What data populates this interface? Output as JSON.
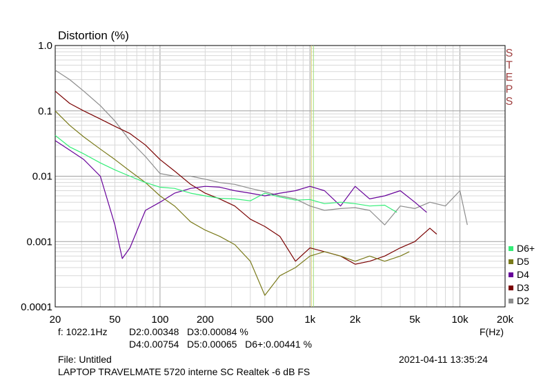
{
  "chart_data": {
    "type": "line",
    "title": "Distortion (%)",
    "xlabel": "F(Hz)",
    "x_scale": "log",
    "y_scale": "log",
    "xlim": [
      20,
      20000
    ],
    "ylim": [
      0.0001,
      1.0
    ],
    "grid": true,
    "legend_position": "right-bottom",
    "watermark": "STEPS",
    "cursor_freq": 1022.1,
    "x_ticks": [
      {
        "value": 20,
        "label": "20"
      },
      {
        "value": 50,
        "label": "50"
      },
      {
        "value": 100,
        "label": "100"
      },
      {
        "value": 200,
        "label": "200"
      },
      {
        "value": 500,
        "label": "500"
      },
      {
        "value": 1000,
        "label": "1k"
      },
      {
        "value": 2000,
        "label": "2k"
      },
      {
        "value": 5000,
        "label": "5k"
      },
      {
        "value": 10000,
        "label": "10k"
      },
      {
        "value": 20000,
        "label": "20k"
      }
    ],
    "y_ticks": [
      {
        "value": 1.0,
        "label": "1.0"
      },
      {
        "value": 0.1,
        "label": "0.1"
      },
      {
        "value": 0.01,
        "label": "0.01"
      },
      {
        "value": 0.001,
        "label": "0.001"
      },
      {
        "value": 0.0001,
        "label": "0.0001"
      }
    ],
    "series": [
      {
        "name": "D2",
        "color": "#8c8c8c",
        "points": [
          [
            20,
            0.42
          ],
          [
            25,
            0.3
          ],
          [
            31,
            0.2
          ],
          [
            40,
            0.12
          ],
          [
            50,
            0.07
          ],
          [
            63,
            0.035
          ],
          [
            80,
            0.02
          ],
          [
            100,
            0.011
          ],
          [
            125,
            0.01
          ],
          [
            160,
            0.01
          ],
          [
            200,
            0.009
          ],
          [
            250,
            0.008
          ],
          [
            315,
            0.0075
          ],
          [
            400,
            0.0065
          ],
          [
            500,
            0.0058
          ],
          [
            630,
            0.005
          ],
          [
            800,
            0.0045
          ],
          [
            1000,
            0.0035
          ],
          [
            1250,
            0.003
          ],
          [
            1600,
            0.0032
          ],
          [
            2000,
            0.0033
          ],
          [
            2500,
            0.003
          ],
          [
            3150,
            0.0018
          ],
          [
            4000,
            0.0035
          ],
          [
            5000,
            0.0032
          ],
          [
            6300,
            0.004
          ],
          [
            8000,
            0.0035
          ],
          [
            10000,
            0.006
          ],
          [
            11200,
            0.0018
          ]
        ]
      },
      {
        "name": "D3",
        "color": "#7a0000",
        "points": [
          [
            20,
            0.2
          ],
          [
            25,
            0.13
          ],
          [
            31,
            0.1
          ],
          [
            40,
            0.075
          ],
          [
            50,
            0.058
          ],
          [
            63,
            0.045
          ],
          [
            80,
            0.03
          ],
          [
            100,
            0.018
          ],
          [
            125,
            0.012
          ],
          [
            160,
            0.0075
          ],
          [
            200,
            0.0055
          ],
          [
            250,
            0.0045
          ],
          [
            315,
            0.0035
          ],
          [
            400,
            0.0022
          ],
          [
            500,
            0.0017
          ],
          [
            630,
            0.0012
          ],
          [
            800,
            0.0005
          ],
          [
            1000,
            0.0008
          ],
          [
            1250,
            0.0007
          ],
          [
            1600,
            0.0006
          ],
          [
            2000,
            0.00045
          ],
          [
            2500,
            0.0005
          ],
          [
            3150,
            0.0006
          ],
          [
            4000,
            0.0008
          ],
          [
            5000,
            0.001
          ],
          [
            6300,
            0.0016
          ],
          [
            7000,
            0.0013
          ]
        ]
      },
      {
        "name": "D4",
        "color": "#660099",
        "points": [
          [
            20,
            0.035
          ],
          [
            25,
            0.025
          ],
          [
            31,
            0.018
          ],
          [
            40,
            0.01
          ],
          [
            50,
            0.0018
          ],
          [
            56,
            0.00055
          ],
          [
            63,
            0.0008
          ],
          [
            80,
            0.003
          ],
          [
            100,
            0.004
          ],
          [
            125,
            0.0055
          ],
          [
            160,
            0.0065
          ],
          [
            200,
            0.007
          ],
          [
            250,
            0.0068
          ],
          [
            315,
            0.006
          ],
          [
            400,
            0.0055
          ],
          [
            500,
            0.005
          ],
          [
            630,
            0.0055
          ],
          [
            800,
            0.006
          ],
          [
            1000,
            0.007
          ],
          [
            1250,
            0.006
          ],
          [
            1600,
            0.0035
          ],
          [
            2000,
            0.007
          ],
          [
            2500,
            0.0045
          ],
          [
            3150,
            0.005
          ],
          [
            4000,
            0.006
          ],
          [
            5000,
            0.004
          ],
          [
            6000,
            0.0028
          ]
        ]
      },
      {
        "name": "D5",
        "color": "#7a7a1a",
        "points": [
          [
            20,
            0.1
          ],
          [
            25,
            0.06
          ],
          [
            31,
            0.04
          ],
          [
            40,
            0.026
          ],
          [
            50,
            0.018
          ],
          [
            63,
            0.012
          ],
          [
            80,
            0.008
          ],
          [
            100,
            0.005
          ],
          [
            125,
            0.0035
          ],
          [
            160,
            0.002
          ],
          [
            200,
            0.0015
          ],
          [
            250,
            0.0012
          ],
          [
            315,
            0.0009
          ],
          [
            400,
            0.0005
          ],
          [
            500,
            0.00015
          ],
          [
            630,
            0.0003
          ],
          [
            800,
            0.0004
          ],
          [
            1000,
            0.0006
          ],
          [
            1250,
            0.0007
          ],
          [
            1600,
            0.0006
          ],
          [
            2000,
            0.0005
          ],
          [
            2500,
            0.0006
          ],
          [
            3150,
            0.0005
          ],
          [
            4000,
            0.0006
          ],
          [
            4600,
            0.0007
          ]
        ]
      },
      {
        "name": "D6+",
        "color": "#33ee77",
        "points": [
          [
            20,
            0.042
          ],
          [
            25,
            0.028
          ],
          [
            31,
            0.022
          ],
          [
            40,
            0.016
          ],
          [
            50,
            0.0125
          ],
          [
            63,
            0.01
          ],
          [
            80,
            0.008
          ],
          [
            100,
            0.0068
          ],
          [
            125,
            0.0065
          ],
          [
            160,
            0.0055
          ],
          [
            200,
            0.005
          ],
          [
            250,
            0.0046
          ],
          [
            315,
            0.0045
          ],
          [
            400,
            0.0042
          ],
          [
            500,
            0.0055
          ],
          [
            630,
            0.0048
          ],
          [
            800,
            0.0043
          ],
          [
            1000,
            0.0044
          ],
          [
            1250,
            0.0038
          ],
          [
            1600,
            0.004
          ],
          [
            2000,
            0.0038
          ],
          [
            2500,
            0.0035
          ],
          [
            3150,
            0.0036
          ],
          [
            3800,
            0.0028
          ]
        ]
      }
    ],
    "legend_order": [
      "D6+",
      "D5",
      "D4",
      "D3",
      "D2"
    ]
  },
  "readout": {
    "freq": "f: 1022.1Hz",
    "line1": "D2:0.00348   D3:0.00084 %",
    "line2": "D4:0.00754   D5:0.00065   D6+:0.00441 %"
  },
  "footer": {
    "file": "File: Untitled",
    "timestamp": "2021-04-11 13:35:24",
    "device": "LAPTOP TRAVELMATE 5720 interne SC Realtek -6 dB FS"
  }
}
